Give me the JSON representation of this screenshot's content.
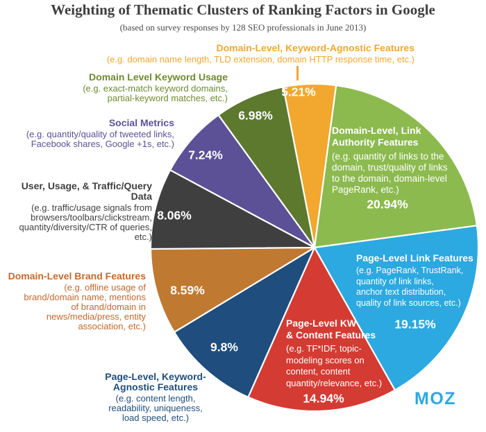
{
  "header": {
    "title": "Weighting of Thematic Clusters of Ranking Factors in Google",
    "subtitle": "(based on survey responses by 128 SEO professionals in June 2013)"
  },
  "footer": {
    "logo_text": "MOZ",
    "logo_color": "#2BA9E1"
  },
  "chart_data": {
    "type": "pie",
    "title": "Weighting of Thematic Clusters of Ranking Factors in Google",
    "subtitle": "(based on survey responses by 128 SEO professionals in June 2013)",
    "legend_position": "callouts-around-pie",
    "start_angle_deg": -11,
    "segments": [
      {
        "key": "domain-keyword-agnostic",
        "label": "Domain-Level, Keyword-Agnostic Features",
        "desc": "(e.g. domain name length, TLD extension, domain HTTP response time, etc.)",
        "value": 5.21,
        "pct_label": "5.21%",
        "color": "#F2A72E",
        "label_color": "#F2A72E"
      },
      {
        "key": "domain-link-authority",
        "label": "Domain-Level, Link\nAuthority Features",
        "desc": "(e.g. quantity of links to the\ndomain, trust/quality of links\nto the domain, domain-level\nPageRank, etc.)",
        "value": 20.94,
        "pct_label": "20.94%",
        "color": "#8CBA4F",
        "label_color": "#FFFFFF"
      },
      {
        "key": "page-link-features",
        "label": "Page-Level Link Features",
        "desc": "(e.g. PageRank, TrustRank,\nquantity of link links,\nanchor text distribution,\nquality of link sources, etc.)",
        "value": 19.15,
        "pct_label": "19.15%",
        "color": "#2BA9E0",
        "label_color": "#FFFFFF"
      },
      {
        "key": "page-kw-content",
        "label": "Page-Level KW\n& Content Features",
        "desc": "(e.g. TF*IDF, topic-\nmodeling scores on\ncontent, content\nquantity/relevance, etc.)",
        "value": 14.94,
        "pct_label": "14.94%",
        "color": "#D43B33",
        "label_color": "#FFFFFF"
      },
      {
        "key": "page-keyword-agnostic",
        "label": "Page-Level, Keyword-\nAgnostic Features",
        "desc": "(e.g. content length,\nreadability, uniqueness,\nload speed, etc.)",
        "value": 9.8,
        "pct_label": "9.8%",
        "color": "#1E4D7E",
        "label_color": "#1E4D7E"
      },
      {
        "key": "domain-brand",
        "label": "Domain-Level Brand Features",
        "desc": "(e.g. offline usage of\nbrand/domain name, mentions\nof brand/domain in\nnews/media/press, entity\nassociation, etc.)",
        "value": 8.59,
        "pct_label": "8.59%",
        "color": "#BF7930",
        "label_color": "#C4682B"
      },
      {
        "key": "user-usage-traffic",
        "label": "User, Usage, & Traffic/Query Data",
        "desc": "(e.g. traffic/usage signals from\nbrowsers/toolbars/clickstream,\nquantity/diversity/CTR of queries,\netc.)",
        "value": 8.06,
        "pct_label": "8.06%",
        "color": "#3F3F3F",
        "label_color": "#3F3F3F"
      },
      {
        "key": "social-metrics",
        "label": "Social Metrics",
        "desc": "(e.g. quantity/quality of tweeted links,\nFacebook shares, Google +1s, etc.)",
        "value": 7.24,
        "pct_label": "7.24%",
        "color": "#5C5096",
        "label_color": "#5C5096"
      },
      {
        "key": "domain-keyword-usage",
        "label": "Domain Level Keyword Usage",
        "desc": "(e.g. exact-match keyword domains,\npartial-keyword matches, etc.)",
        "value": 6.98,
        "pct_label": "6.98%",
        "color": "#5C792E",
        "label_color": "#6C8B2D"
      }
    ]
  }
}
